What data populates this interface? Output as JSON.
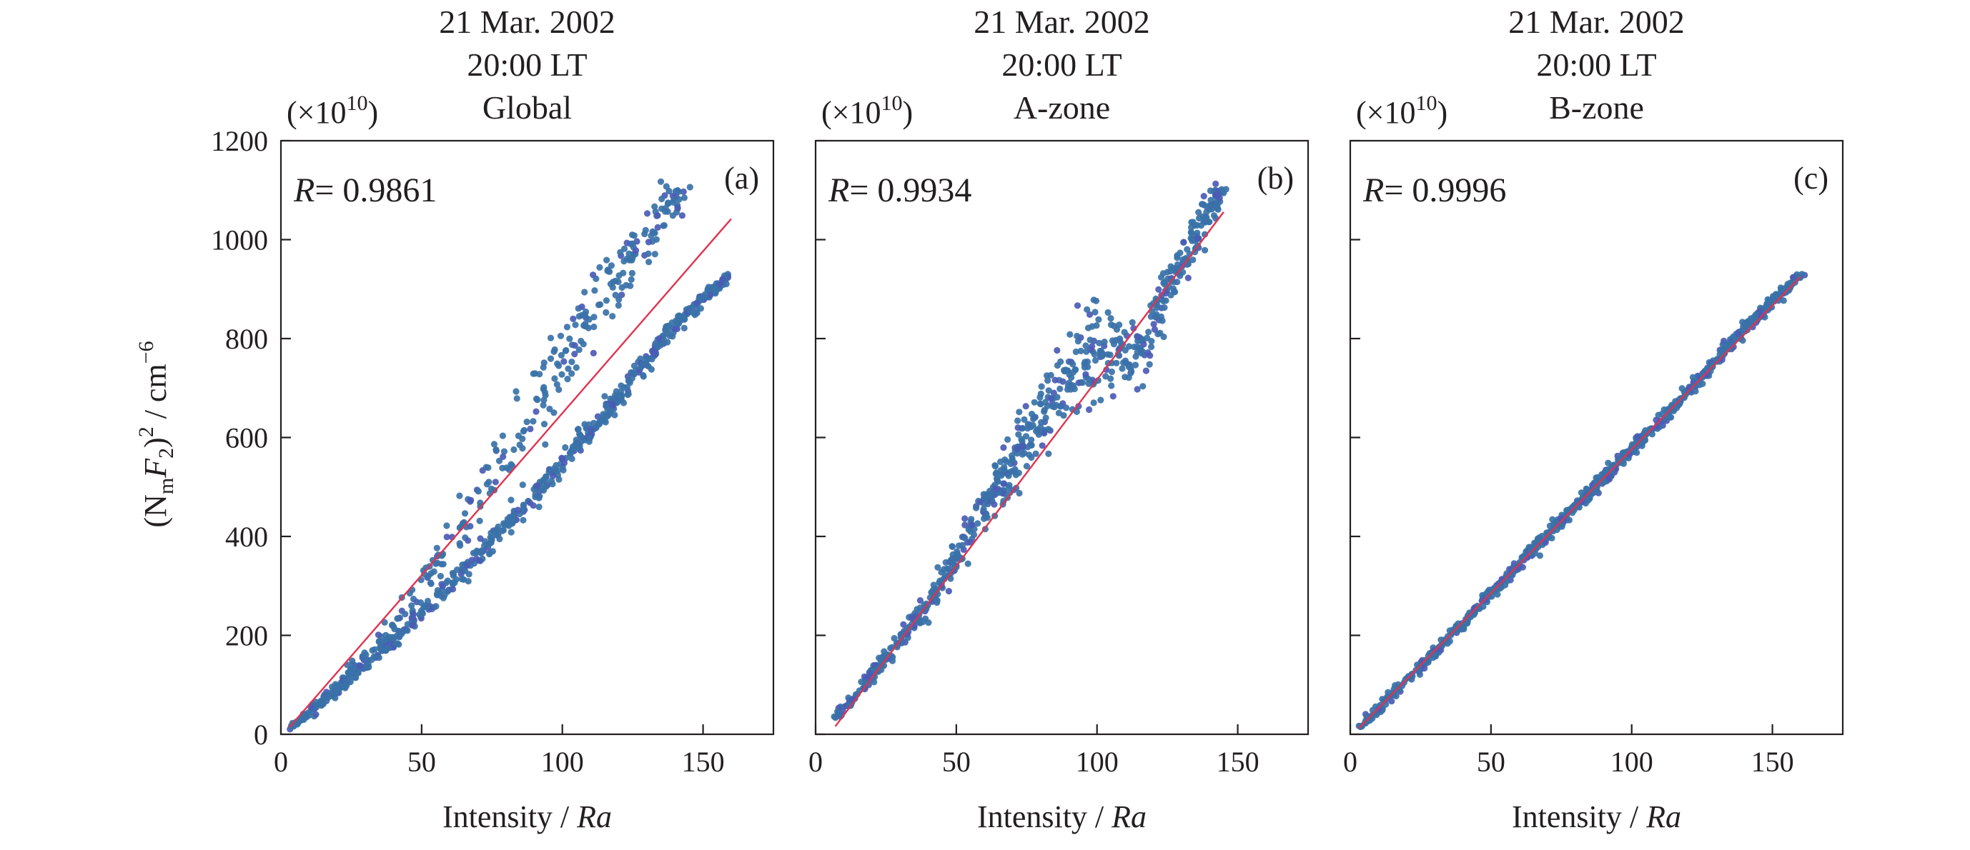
{
  "figure": {
    "ylabel_left": "(N",
    "ylabel_sub": "m",
    "ylabel_f": "F",
    "ylabel_sub2": "2",
    "ylabel_rest": ")",
    "ylabel_sup": "2",
    "ylabel_unit": " / cm",
    "ylabel_unit_sup": "−6",
    "multiplier_base": "(×10",
    "multiplier_exp": "10",
    "multiplier_close": ")"
  },
  "chart_data": [
    {
      "type": "scatter",
      "title_lines": [
        "21 Mar. 2002",
        "20:00 LT",
        "Global"
      ],
      "panel_label": "(a)",
      "r_prefix": "R",
      "r_value": "= 0.9861",
      "xlabel_text": "Intensity / ",
      "xlabel_italic": "Ra",
      "xlim": [
        0,
        175
      ],
      "ylim": [
        0,
        1200
      ],
      "xticks": [
        0,
        50,
        100,
        150
      ],
      "yticks": [
        0,
        200,
        400,
        600,
        800,
        1000,
        1200
      ],
      "show_y_tick_labels": true,
      "point_color": "#3a72a8",
      "point_color_alt": "#4b5bb5",
      "fit_color": "#e0334f",
      "fit_line": {
        "x": [
          3,
          160
        ],
        "y": [
          14,
          1042
        ]
      },
      "branches": [
        {
          "x": [
            3,
            20,
            40,
            60,
            80,
            100,
            120,
            140,
            145
          ],
          "y": [
            12,
            95,
            220,
            380,
            560,
            760,
            930,
            1080,
            1100
          ],
          "spread": [
            5,
            10,
            20,
            45,
            70,
            70,
            55,
            40,
            20
          ],
          "count": 320
        },
        {
          "x": [
            3,
            20,
            40,
            60,
            80,
            100,
            120,
            140,
            160
          ],
          "y": [
            12,
            90,
            190,
            300,
            420,
            550,
            680,
            830,
            930
          ],
          "spread": [
            5,
            8,
            12,
            18,
            22,
            22,
            18,
            14,
            8
          ],
          "count": 560
        }
      ]
    },
    {
      "type": "scatter",
      "title_lines": [
        "21 Mar. 2002",
        "20:00 LT",
        "A-zone"
      ],
      "panel_label": "(b)",
      "r_prefix": "R",
      "r_value": "= 0.9934",
      "xlabel_text": "Intensity / ",
      "xlabel_italic": "Ra",
      "xlim": [
        0,
        175
      ],
      "ylim": [
        0,
        1200
      ],
      "xticks": [
        0,
        50,
        100,
        150
      ],
      "yticks": [
        0,
        200,
        400,
        600,
        800,
        1000,
        1200
      ],
      "show_y_tick_labels": false,
      "point_color": "#3a72a8",
      "point_color_alt": "#4b5bb5",
      "fit_color": "#e0334f",
      "fit_line": {
        "x": [
          7,
          145
        ],
        "y": [
          16,
          1056
        ]
      },
      "branches": [
        {
          "x": [
            7,
            20,
            40,
            60,
            80,
            100,
            115,
            125,
            140,
            145
          ],
          "y": [
            30,
            120,
            260,
            460,
            650,
            780,
            760,
            900,
            1060,
            1100
          ],
          "spread": [
            5,
            12,
            22,
            40,
            70,
            80,
            70,
            50,
            35,
            20
          ],
          "count": 720
        }
      ]
    },
    {
      "type": "scatter",
      "title_lines": [
        "21 Mar. 2002",
        "20:00 LT",
        "B-zone"
      ],
      "panel_label": "(c)",
      "r_prefix": "R",
      "r_value": "= 0.9996",
      "xlabel_text": "Intensity / ",
      "xlabel_italic": "Ra",
      "xlim": [
        0,
        175
      ],
      "ylim": [
        0,
        1200
      ],
      "xticks": [
        0,
        50,
        100,
        150
      ],
      "yticks": [
        0,
        200,
        400,
        600,
        800,
        1000,
        1200
      ],
      "show_y_tick_labels": false,
      "point_color": "#3a72a8",
      "point_color_alt": "#4b5bb5",
      "fit_color": "#e0334f",
      "fit_line": {
        "x": [
          3,
          160
        ],
        "y": [
          12,
          925
        ]
      },
      "branches": [
        {
          "x": [
            3,
            20,
            40,
            60,
            80,
            100,
            120,
            140,
            160
          ],
          "y": [
            12,
            110,
            225,
            345,
            460,
            575,
            690,
            820,
            930
          ],
          "spread": [
            4,
            6,
            8,
            10,
            10,
            10,
            10,
            8,
            6
          ],
          "count": 800
        }
      ]
    }
  ]
}
